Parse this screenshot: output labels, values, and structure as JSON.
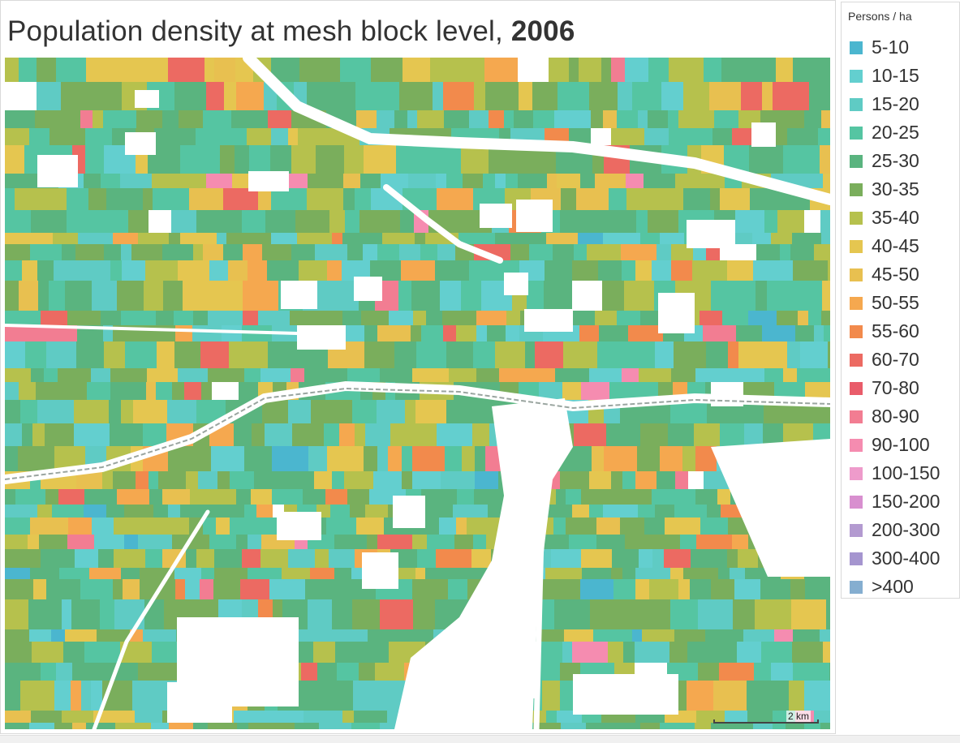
{
  "title": {
    "prefix": "Population density at mesh block level, ",
    "year": "2006"
  },
  "legend": {
    "title": "Persons / ha",
    "items": [
      {
        "label": "5-10",
        "color": "#4bb6cf"
      },
      {
        "label": "10-15",
        "color": "#63cfcf"
      },
      {
        "label": "15-20",
        "color": "#5fcbc4"
      },
      {
        "label": "20-25",
        "color": "#55c5a2"
      },
      {
        "label": "25-30",
        "color": "#5ab47f"
      },
      {
        "label": "30-35",
        "color": "#7aae5c"
      },
      {
        "label": "35-40",
        "color": "#b6c14d"
      },
      {
        "label": "40-45",
        "color": "#e5c650"
      },
      {
        "label": "45-50",
        "color": "#e8c050"
      },
      {
        "label": "50-55",
        "color": "#f5a84f"
      },
      {
        "label": "55-60",
        "color": "#f28a4c"
      },
      {
        "label": "60-70",
        "color": "#ec6a62"
      },
      {
        "label": "70-80",
        "color": "#e95c6a"
      },
      {
        "label": "80-90",
        "color": "#f27d92"
      },
      {
        "label": "90-100",
        "color": "#f58cb0"
      },
      {
        "label": "100-150",
        "color": "#ee9bcb"
      },
      {
        "label": "150-200",
        "color": "#d88fcf"
      },
      {
        "label": "200-300",
        "color": "#b39ad0"
      },
      {
        "label": "300-400",
        "color": "#a595cf"
      },
      {
        "label": ">400",
        "color": "#85aed0"
      }
    ]
  },
  "scale": {
    "label": "2 km"
  }
}
